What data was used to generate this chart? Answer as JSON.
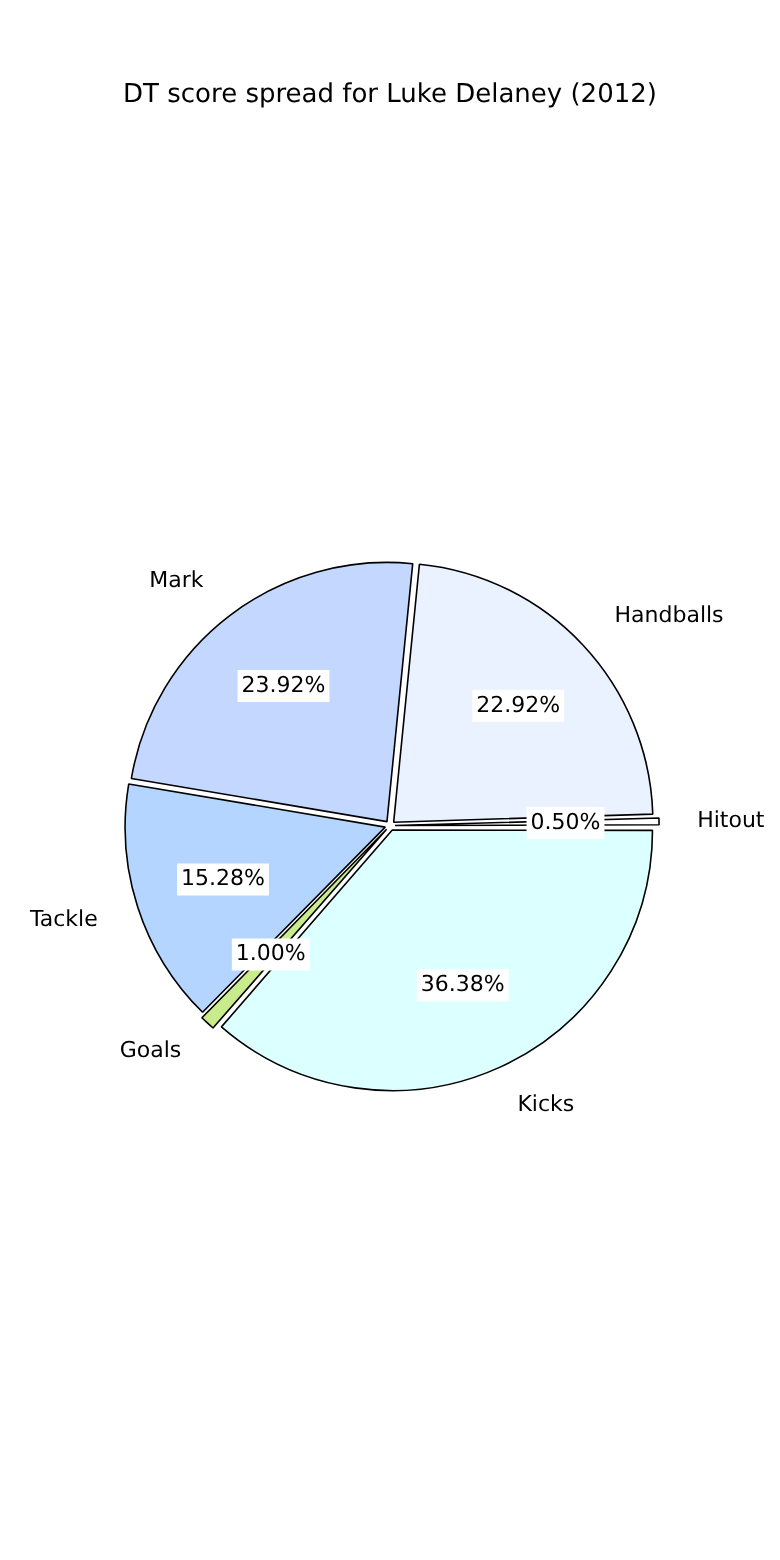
{
  "chart_data": {
    "type": "pie",
    "title": "DT score spread for Luke Delaney (2012)",
    "categories": [
      "Handballs",
      "Hitout",
      "Kicks",
      "Goals",
      "Tackle",
      "Mark"
    ],
    "values": [
      22.92,
      0.5,
      36.38,
      1.0,
      15.28,
      23.92
    ],
    "value_labels": [
      "22.92%",
      "0.50%",
      "36.38%",
      "1.00%",
      "15.28%",
      "23.92%"
    ],
    "colors": [
      "#eaf1ff",
      "#ffffff",
      "#dcffff",
      "#c8ec8c",
      "#b4d5ff",
      "#c4d8ff"
    ],
    "legend": false
  }
}
